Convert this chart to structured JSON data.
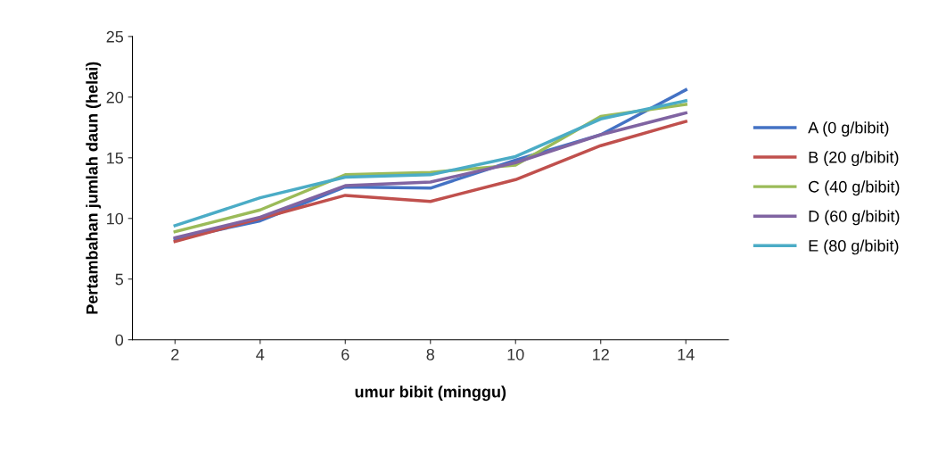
{
  "chart_data": {
    "type": "line",
    "xlabel": "umur bibit (minggu)",
    "ylabel": "Pertambahan jumlah daun (helai)",
    "categories": [
      "2",
      "4",
      "6",
      "8",
      "10",
      "12",
      "14"
    ],
    "series": [
      {
        "name": "A (0 g/bibit)",
        "color": "#4472c4",
        "values": [
          8.3,
          9.8,
          12.6,
          12.5,
          14.8,
          16.9,
          20.6
        ]
      },
      {
        "name": "B (20 g/bibit)",
        "color": "#c0504d",
        "values": [
          8.1,
          10.0,
          11.9,
          11.4,
          13.2,
          16.0,
          18.0
        ]
      },
      {
        "name": "C (40 g/bibit)",
        "color": "#9bbb59",
        "values": [
          8.9,
          10.7,
          13.6,
          13.8,
          14.4,
          18.4,
          19.4
        ]
      },
      {
        "name": "D (60 g/bibit)",
        "color": "#8064a2",
        "values": [
          8.4,
          10.1,
          12.7,
          13.0,
          14.6,
          16.9,
          18.7
        ]
      },
      {
        "name": "E (80 g/bibit)",
        "color": "#4bacc6",
        "values": [
          9.4,
          11.7,
          13.4,
          13.6,
          15.1,
          18.2,
          19.7
        ]
      }
    ],
    "ylim": [
      0,
      25
    ],
    "yticks": [
      0,
      5,
      10,
      15,
      20,
      25
    ],
    "grid": false,
    "legend": "right",
    "marker": "none",
    "line_style": "solid"
  }
}
